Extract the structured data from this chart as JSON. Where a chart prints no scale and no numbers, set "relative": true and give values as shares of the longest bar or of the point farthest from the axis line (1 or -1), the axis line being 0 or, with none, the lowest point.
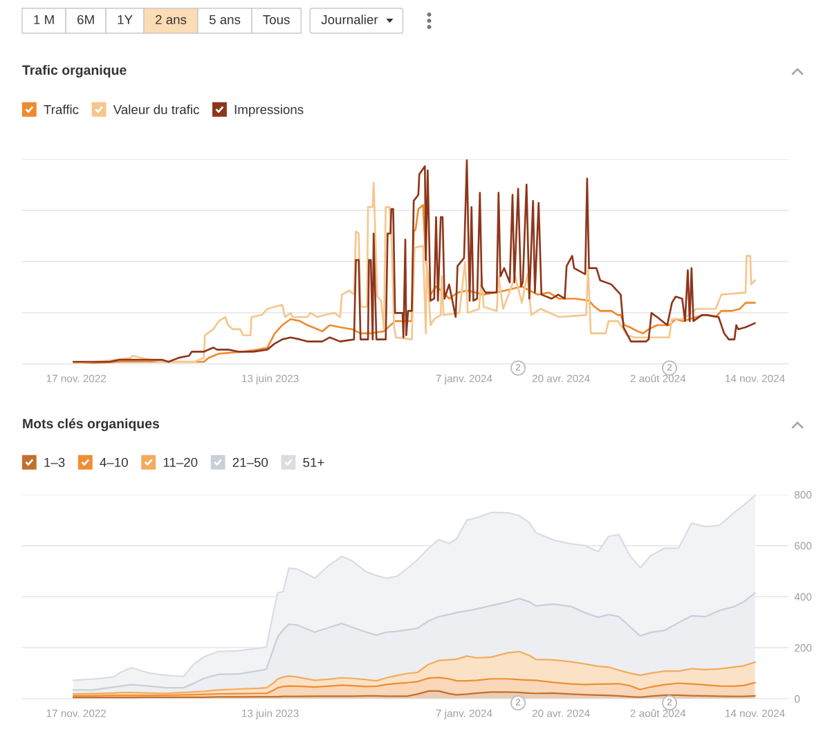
{
  "chart_data": [
    {
      "type": "other",
      "annotations": [
        "1 M",
        "6M",
        "1Y",
        "2 ans",
        "5 ans",
        "Tous",
        "Journalier"
      ],
      "colors": [
        "#ffffff",
        "#ffffff",
        "#ffffff",
        "#fcdcb4",
        "#ffffff",
        "#ffffff",
        "#ffffff"
      ]
    },
    {
      "type": "line",
      "title": "Trafic organique",
      "relative": true,
      "tick_labels": "x",
      "grid": "y",
      "legend": "top left",
      "xlim": [
        "2022-09-20",
        "2024-12-20"
      ],
      "xticks": [
        {
          "value": "2022-11-17",
          "label": "17 nov. 2022"
        },
        {
          "value": "2023-06-13",
          "label": "13 juin 2023"
        },
        {
          "value": "2024-01-07",
          "label": "7 janv. 2024"
        },
        {
          "value": "2024-04-20",
          "label": "20 avr. 2024"
        },
        {
          "value": "2024-08-02",
          "label": "2 août 2024"
        },
        {
          "value": "2024-11-14",
          "label": "14 nov. 2024"
        }
      ],
      "annotations": [
        "2",
        "2"
      ],
      "series": [
        {
          "name": "Traffic",
          "color": "#ee8a2e",
          "x": [
            "2022-11-14",
            "2023-01-02",
            "2023-01-28",
            "2023-02-24",
            "2023-03-24",
            "2023-04-03",
            "2023-04-08",
            "2023-04-19",
            "2023-05-15",
            "2023-05-31",
            "2023-06-10",
            "2023-06-18",
            "2023-06-26",
            "2023-07-05",
            "2023-07-15",
            "2023-07-23",
            "2023-08-03",
            "2023-08-08",
            "2023-08-16",
            "2023-08-27",
            "2023-09-09",
            "2023-09-18",
            "2023-09-29",
            "2023-10-13",
            "2023-10-25",
            "2023-11-12",
            "2023-11-14",
            "2023-11-16",
            "2023-11-19",
            "2023-11-24",
            "2023-11-27",
            "2023-12-02",
            "2023-12-08",
            "2023-12-16",
            "2023-12-22",
            "2023-12-31",
            "2024-01-11",
            "2024-01-28",
            "2024-02-20",
            "2024-03-09",
            "2024-03-26",
            "2024-04-07",
            "2024-04-18",
            "2024-05-06",
            "2024-05-20",
            "2024-05-26",
            "2024-06-01",
            "2024-06-13",
            "2024-06-20",
            "2024-06-23",
            "2024-06-27",
            "2024-07-03",
            "2024-07-11",
            "2024-07-17",
            "2024-07-23",
            "2024-08-01",
            "2024-08-14",
            "2024-08-21",
            "2024-08-29",
            "2024-09-12",
            "2024-09-21",
            "2024-10-03",
            "2024-10-09",
            "2024-10-20",
            "2024-10-29",
            "2024-11-04",
            "2024-11-08",
            "2024-11-14"
          ],
          "values": [
            0,
            0.01,
            0.01,
            0.01,
            0.01,
            0.01,
            0.03,
            0.05,
            0.06,
            0.07,
            0.08,
            0.15,
            0.19,
            0.22,
            0.21,
            0.19,
            0.17,
            0.16,
            0.19,
            0.18,
            0.17,
            0.15,
            0.15,
            0.16,
            0.21,
            0.21,
            0.65,
            0.66,
            0.76,
            0.78,
            0.51,
            0.34,
            0.38,
            0.35,
            0.32,
            0.35,
            0.36,
            0.34,
            0.36,
            0.38,
            0.34,
            0.35,
            0.32,
            0.32,
            0.31,
            0.28,
            0.26,
            0.26,
            0.24,
            0.24,
            0.19,
            0.18,
            0.16,
            0.15,
            0.17,
            0.19,
            0.19,
            0.22,
            0.21,
            0.23,
            0.24,
            0.23,
            0.26,
            0.26,
            0.27,
            0.3,
            0.3,
            0.3
          ]
        },
        {
          "name": "Valeur du trafic",
          "color": "#f6c68c",
          "x": [
            "2022-11-14",
            "2022-12-07",
            "2022-12-31",
            "2023-01-15",
            "2023-01-16",
            "2023-01-26",
            "2023-02-14",
            "2023-03-24",
            "2023-04-03",
            "2023-04-04",
            "2023-04-13",
            "2023-04-19",
            "2023-04-26",
            "2023-04-29",
            "2023-05-04",
            "2023-05-12",
            "2023-05-15",
            "2023-05-23",
            "2023-05-24",
            "2023-06-04",
            "2023-06-10",
            "2023-06-26",
            "2023-06-29",
            "2023-07-05",
            "2023-07-07",
            "2023-07-23",
            "2023-07-26",
            "2023-08-03",
            "2023-08-10",
            "2023-08-21",
            "2023-08-27",
            "2023-08-29",
            "2023-09-06",
            "2023-09-11",
            "2023-09-13",
            "2023-09-16",
            "2023-09-18",
            "2023-09-25",
            "2023-09-26",
            "2023-10-01",
            "2023-10-02",
            "2023-10-06",
            "2023-10-10",
            "2023-10-13",
            "2023-10-15",
            "2023-10-19",
            "2023-10-21",
            "2023-10-24",
            "2023-10-26",
            "2023-11-12",
            "2023-11-15",
            "2023-11-24",
            "2023-11-27",
            "2023-11-28",
            "2023-12-02",
            "2023-12-06",
            "2023-12-13",
            "2023-12-14",
            "2023-12-16",
            "2024-01-02",
            "2024-01-08",
            "2024-01-11",
            "2024-01-23",
            "2024-01-26",
            "2024-01-28",
            "2024-02-11",
            "2024-02-13",
            "2024-02-18",
            "2024-03-02",
            "2024-03-09",
            "2024-03-15",
            "2024-03-19",
            "2024-03-29",
            "2024-04-18",
            "2024-05-17",
            "2024-05-19",
            "2024-05-22",
            "2024-06-07",
            "2024-06-10",
            "2024-06-20",
            "2024-06-30",
            "2024-07-08",
            "2024-08-14",
            "2024-08-17",
            "2024-08-29",
            "2024-09-12",
            "2024-10-03",
            "2024-10-09",
            "2024-11-04",
            "2024-11-05",
            "2024-11-09",
            "2024-11-10",
            "2024-11-14"
          ],
          "values": [
            0,
            0.01,
            0.02,
            0.03,
            0.04,
            0.03,
            0.01,
            0.01,
            0.03,
            0.14,
            0.17,
            0.21,
            0.23,
            0.19,
            0.17,
            0.17,
            0.14,
            0.14,
            0.23,
            0.24,
            0.27,
            0.29,
            0.23,
            0.25,
            0.23,
            0.23,
            0.25,
            0.23,
            0.24,
            0.25,
            0.23,
            0.34,
            0.36,
            0.34,
            0.65,
            0.64,
            0.28,
            0.28,
            0.77,
            0.77,
            0.89,
            0.33,
            0.31,
            0.17,
            0.77,
            0.77,
            0.64,
            0.18,
            0.13,
            0.12,
            0.57,
            0.58,
            0.15,
            0.51,
            0.19,
            0.22,
            0.24,
            0.43,
            0.24,
            0.25,
            0.5,
            0.25,
            0.27,
            0.43,
            0.28,
            0.26,
            0.43,
            0.27,
            0.43,
            0.3,
            0.44,
            0.24,
            0.27,
            0.23,
            0.24,
            0.47,
            0.15,
            0.15,
            0.21,
            0.21,
            0.14,
            0.13,
            0.13,
            0.22,
            0.22,
            0.27,
            0.27,
            0.34,
            0.35,
            0.53,
            0.53,
            0.39,
            0.41
          ]
        },
        {
          "name": "Impressions",
          "color": "#8d361b",
          "x": [
            "2022-11-14",
            "2022-12-23",
            "2023-01-02",
            "2023-01-26",
            "2023-02-17",
            "2023-02-24",
            "2023-03-07",
            "2023-03-18",
            "2023-03-21",
            "2023-04-03",
            "2023-04-13",
            "2023-04-17",
            "2023-04-29",
            "2023-05-10",
            "2023-05-26",
            "2023-06-10",
            "2023-06-18",
            "2023-06-26",
            "2023-07-05",
            "2023-07-15",
            "2023-07-23",
            "2023-08-08",
            "2023-08-16",
            "2023-08-27",
            "2023-09-11",
            "2023-09-13",
            "2023-09-16",
            "2023-09-18",
            "2023-09-26",
            "2023-09-27",
            "2023-09-29",
            "2023-10-01",
            "2023-10-02",
            "2023-10-05",
            "2023-10-15",
            "2023-10-17",
            "2023-10-20",
            "2023-10-21",
            "2023-10-23",
            "2023-10-25",
            "2023-11-02",
            "2023-11-03",
            "2023-11-05",
            "2023-11-06",
            "2023-11-08",
            "2023-11-12",
            "2023-11-14",
            "2023-11-19",
            "2023-11-20",
            "2023-11-26",
            "2023-11-27",
            "2023-11-29",
            "2023-12-02",
            "2023-12-06",
            "2023-12-08",
            "2023-12-10",
            "2023-12-13",
            "2023-12-15",
            "2023-12-17",
            "2023-12-22",
            "2023-12-29",
            "2023-12-31",
            "2024-01-07",
            "2024-01-10",
            "2024-01-13",
            "2024-01-15",
            "2024-01-17",
            "2024-01-21",
            "2024-01-24",
            "2024-01-26",
            "2024-01-30",
            "2024-02-11",
            "2024-02-13",
            "2024-02-15",
            "2024-02-19",
            "2024-02-25",
            "2024-02-28",
            "2024-03-01",
            "2024-03-05",
            "2024-03-08",
            "2024-03-10",
            "2024-03-14",
            "2024-03-17",
            "2024-03-21",
            "2024-03-23",
            "2024-03-27",
            "2024-03-30",
            "2024-04-10",
            "2024-04-17",
            "2024-04-24",
            "2024-04-26",
            "2024-05-02",
            "2024-05-04",
            "2024-05-16",
            "2024-05-18",
            "2024-05-20",
            "2024-05-28",
            "2024-06-01",
            "2024-06-13",
            "2024-06-23",
            "2024-06-26",
            "2024-07-04",
            "2024-07-10",
            "2024-07-20",
            "2024-07-23",
            "2024-07-26",
            "2024-08-01",
            "2024-08-12",
            "2024-08-17",
            "2024-08-21",
            "2024-08-28",
            "2024-08-31",
            "2024-09-03",
            "2024-09-05",
            "2024-09-07",
            "2024-09-09",
            "2024-09-18",
            "2024-09-24",
            "2024-10-06",
            "2024-10-12",
            "2024-10-17",
            "2024-10-23",
            "2024-10-25",
            "2024-10-27",
            "2024-11-04",
            "2024-11-14"
          ],
          "values": [
            0.01,
            0.01,
            0.02,
            0.02,
            0.02,
            0.01,
            0.03,
            0.04,
            0.06,
            0.06,
            0.08,
            0.07,
            0.07,
            0.06,
            0.06,
            0.07,
            0.1,
            0.12,
            0.13,
            0.12,
            0.11,
            0.11,
            0.13,
            0.11,
            0.12,
            0.51,
            0.51,
            0.12,
            0.12,
            0.51,
            0.51,
            0.12,
            0.64,
            0.12,
            0.12,
            0.64,
            0.64,
            0.76,
            0.76,
            0.25,
            0.25,
            0.13,
            0.61,
            0.14,
            0.26,
            0.26,
            0.8,
            0.83,
            0.93,
            0.97,
            0.51,
            0.95,
            0.31,
            0.32,
            0.72,
            0.31,
            0.72,
            0.72,
            0.32,
            0.39,
            0.23,
            0.48,
            0.52,
            1,
            0.31,
            0.77,
            0.31,
            0.32,
            0.84,
            0.38,
            0.35,
            0.35,
            0.84,
            0.43,
            0.47,
            0.4,
            0.83,
            0.4,
            0.86,
            0.38,
            0.4,
            0.88,
            0.32,
            0.8,
            0.35,
            0.79,
            0.34,
            0.32,
            0.34,
            0.32,
            0.48,
            0.53,
            0.47,
            0.44,
            0.91,
            0.47,
            0.47,
            0.41,
            0.39,
            0.34,
            0.18,
            0.11,
            0.11,
            0.11,
            0.12,
            0.25,
            0.23,
            0.19,
            0.3,
            0.33,
            0.32,
            0.21,
            0.46,
            0.21,
            0.47,
            0.21,
            0.24,
            0.24,
            0.23,
            0.15,
            0.12,
            0.12,
            0.19,
            0.17,
            0.18,
            0.2
          ]
        }
      ]
    },
    {
      "type": "area",
      "title": "Mots clés organiques",
      "stacked": true,
      "grid": "y",
      "legend": "top left",
      "xlim": [
        "2022-09-20",
        "2024-12-20"
      ],
      "xticks": [
        {
          "value": "2022-11-17",
          "label": "17 nov. 2022"
        },
        {
          "value": "2023-06-13",
          "label": "13 juin 2023"
        },
        {
          "value": "2024-01-07",
          "label": "7 janv. 2024"
        },
        {
          "value": "2024-04-20",
          "label": "20 avr. 2024"
        },
        {
          "value": "2024-08-02",
          "label": "2 août 2024"
        },
        {
          "value": "2024-11-14",
          "label": "14 nov. 2024"
        }
      ],
      "ylim": [
        0,
        800
      ],
      "yticks": [
        0,
        200,
        400,
        600,
        800
      ],
      "annotations": [
        "2",
        "2"
      ],
      "x": [
        "2022-11-14",
        "2022-12-05",
        "2022-12-27",
        "2023-01-04",
        "2023-01-15",
        "2023-02-03",
        "2023-02-21",
        "2023-03-12",
        "2023-03-23",
        "2023-04-03",
        "2023-04-18",
        "2023-05-10",
        "2023-06-01",
        "2023-06-09",
        "2023-06-16",
        "2023-06-21",
        "2023-06-27",
        "2023-07-03",
        "2023-07-12",
        "2023-07-31",
        "2023-08-14",
        "2023-08-29",
        "2023-09-09",
        "2023-09-24",
        "2023-10-05",
        "2023-10-16",
        "2023-10-27",
        "2023-11-07",
        "2023-11-18",
        "2023-11-30",
        "2023-12-11",
        "2023-12-22",
        "2023-12-30",
        "2024-01-10",
        "2024-01-21",
        "2024-02-05",
        "2024-02-23",
        "2024-03-06",
        "2024-03-17",
        "2024-03-24",
        "2024-04-12",
        "2024-05-01",
        "2024-05-15",
        "2024-05-30",
        "2024-06-10",
        "2024-06-21",
        "2024-07-03",
        "2024-07-14",
        "2024-07-25",
        "2024-08-09",
        "2024-08-24",
        "2024-09-07",
        "2024-09-22",
        "2024-10-07",
        "2024-10-22",
        "2024-11-02",
        "2024-11-14"
      ],
      "series": [
        {
          "name": "1–3",
          "color": "#c3702c",
          "values": [
            5,
            5,
            5,
            5,
            5,
            6,
            6,
            6,
            6,
            6,
            7,
            7,
            8,
            8,
            8,
            8,
            9,
            9,
            9,
            10,
            10,
            10,
            10,
            11,
            11,
            10,
            10,
            10,
            18,
            30,
            30,
            20,
            15,
            18,
            22,
            26,
            26,
            25,
            22,
            21,
            22,
            18,
            16,
            14,
            13,
            11,
            8,
            6,
            10,
            14,
            14,
            12,
            11,
            10,
            9,
            9,
            11
          ]
        },
        {
          "name": "4–10",
          "color": "#ef8d33",
          "values": [
            7,
            7,
            8,
            8,
            8,
            7,
            8,
            9,
            10,
            11,
            12,
            13,
            13,
            13,
            24,
            35,
            39,
            41,
            40,
            36,
            39,
            43,
            41,
            37,
            38,
            46,
            50,
            53,
            49,
            51,
            53,
            58,
            55,
            52,
            50,
            52,
            52,
            50,
            51,
            51,
            42,
            40,
            40,
            43,
            45,
            48,
            43,
            30,
            36,
            41,
            47,
            46,
            43,
            40,
            40,
            43,
            52
          ]
        },
        {
          "name": "11–20",
          "color": "#f3ab5c",
          "values": [
            7,
            8,
            9,
            11,
            11,
            9,
            7,
            10,
            11,
            12,
            15,
            18,
            20,
            22,
            28,
            34,
            37,
            39,
            36,
            26,
            27,
            29,
            29,
            27,
            21,
            26,
            31,
            36,
            36,
            54,
            67,
            75,
            85,
            97,
            88,
            85,
            102,
            110,
            97,
            82,
            88,
            87,
            81,
            70,
            66,
            53,
            49,
            56,
            54,
            53,
            47,
            60,
            60,
            67,
            75,
            77,
            80
          ]
        },
        {
          "name": "21–50",
          "color": "#c8cfd8",
          "values": [
            15,
            14,
            24,
            26,
            31,
            28,
            22,
            18,
            33,
            51,
            61,
            59,
            69,
            73,
            130,
            165,
            185,
            203,
            204,
            189,
            202,
            213,
            200,
            186,
            179,
            179,
            173,
            171,
            173,
            170,
            172,
            177,
            183,
            178,
            192,
            202,
            200,
            208,
            210,
            210,
            219,
            216,
            201,
            192,
            206,
            210,
            182,
            154,
            160,
            160,
            190,
            207,
            208,
            229,
            236,
            251,
            271
          ]
        },
        {
          "name": "51+",
          "color": "#d9dde3",
          "values": [
            38,
            43,
            39,
            54,
            67,
            51,
            49,
            44,
            75,
            84,
            90,
            91,
            88,
            87,
            140,
            173,
            150,
            220,
            219,
            212,
            242,
            263,
            260,
            236,
            234,
            211,
            216,
            240,
            269,
            285,
            302,
            278,
            289,
            355,
            358,
            365,
            349,
            325,
            310,
            287,
            251,
            246,
            263,
            258,
            306,
            322,
            278,
            268,
            300,
            322,
            292,
            363,
            353,
            334,
            368,
            379,
            382
          ]
        }
      ]
    }
  ]
}
